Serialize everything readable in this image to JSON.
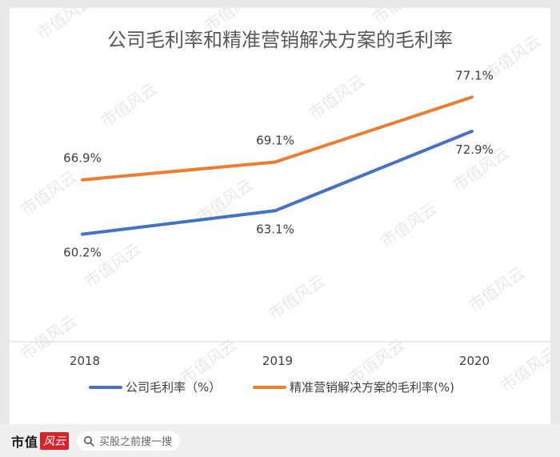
{
  "chart_data": {
    "type": "line",
    "title": "公司毛利率和精准营销解决方案的毛利率",
    "categories": [
      "2018",
      "2019",
      "2020"
    ],
    "ylim": [
      50,
      80
    ],
    "grid": false,
    "legend_position": "bottom",
    "series": [
      {
        "name": "公司毛利率（%）",
        "values": [
          60.2,
          63.1,
          72.9
        ],
        "labels": [
          "60.2%",
          "63.1%",
          "72.9%"
        ],
        "color": "#4472c4"
      },
      {
        "name": "精准营销解决方案的毛利率(%)",
        "values": [
          66.9,
          69.1,
          77.1
        ],
        "labels": [
          "66.9%",
          "69.1%",
          "77.1%"
        ],
        "color": "#ed7d31"
      }
    ]
  },
  "watermark": "市值风云",
  "footer": {
    "logo_text": "市值",
    "logo_mark": "风云",
    "search_icon": "search-icon",
    "search_text": "买股之前搜一搜"
  }
}
